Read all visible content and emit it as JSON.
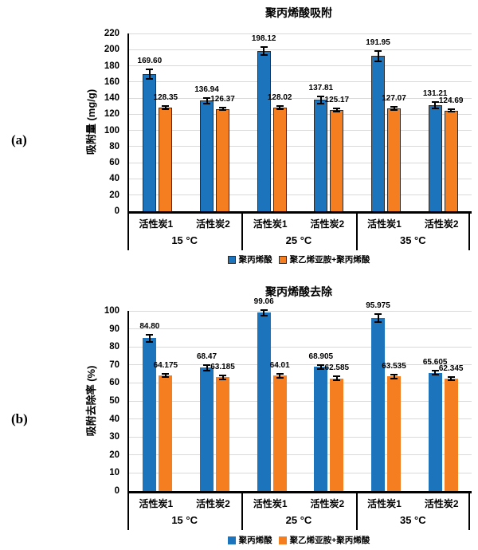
{
  "colors": {
    "series_blue": "#1C75BC",
    "series_orange": "#F57E20",
    "grid": "#D9D9D9",
    "axis": "#000000",
    "bar_border_top_chart": "#2E2B28"
  },
  "chart_data": [
    {
      "type": "bar",
      "panel_label": "(a)",
      "title": "聚丙烯酸吸附",
      "ylabel": "吸附量 (mg/g)",
      "ylim": [
        0,
        220
      ],
      "ytick_step": 20,
      "grid": true,
      "legend_position": "bottom",
      "bar_border": "#2E2B28",
      "groups": [
        "15 °C",
        "25 °C",
        "35 °C"
      ],
      "subgroups": [
        "活性炭1",
        "活性炭2",
        "活性炭1",
        "活性炭2",
        "活性炭1",
        "活性炭2"
      ],
      "series": [
        {
          "name": "聚丙烯酸",
          "color": "#1C75BC",
          "values": [
            169.6,
            136.94,
            198.12,
            137.81,
            191.95,
            131.21
          ],
          "labels": [
            "169.60",
            "136.94",
            "198.12",
            "137.81",
            "191.95",
            "131.21"
          ],
          "errors": [
            7,
            4.5,
            6,
            5.5,
            7,
            5
          ]
        },
        {
          "name": "聚乙烯亚胺+聚丙烯酸",
          "color": "#F57E20",
          "values": [
            128.35,
            126.37,
            128.02,
            125.17,
            127.07,
            124.69
          ],
          "labels": [
            "128.35",
            "126.37",
            "128.02",
            "125.17",
            "127.07",
            "124.69"
          ],
          "errors": [
            3,
            2.5,
            3,
            3,
            3,
            2.5
          ]
        }
      ]
    },
    {
      "type": "bar",
      "panel_label": "(b)",
      "title": "聚丙烯酸去除",
      "ylabel": "吸附去除率 (%)",
      "ylim": [
        0,
        100
      ],
      "ytick_step": 10,
      "grid": true,
      "legend_position": "bottom",
      "groups": [
        "15 °C",
        "25 °C",
        "35 °C"
      ],
      "subgroups": [
        "活性炭1",
        "活性炭2",
        "活性炭1",
        "活性炭2",
        "活性炭1",
        "活性炭2"
      ],
      "series": [
        {
          "name": "聚丙烯酸",
          "color": "#1C75BC",
          "values": [
            84.8,
            68.47,
            99.06,
            68.905,
            95.975,
            65.605
          ],
          "labels": [
            "84.80",
            "68.47",
            "99.06",
            "68.905",
            "95.975",
            "65.605"
          ],
          "errors": [
            2.5,
            2,
            2,
            1.5,
            2.5,
            1.5
          ]
        },
        {
          "name": "聚乙烯亚胺+聚丙烯酸",
          "color": "#F57E20",
          "values": [
            64.175,
            63.185,
            64.01,
            62.585,
            63.535,
            62.345
          ],
          "labels": [
            "64.175",
            "63.185",
            "64.01",
            "62.585",
            "63.535",
            "62.345"
          ],
          "errors": [
            1.5,
            1.5,
            1.5,
            1.5,
            1.5,
            1.5
          ]
        }
      ]
    }
  ]
}
